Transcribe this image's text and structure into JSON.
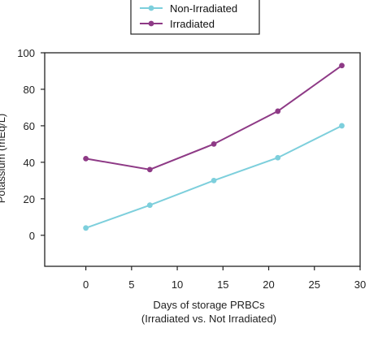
{
  "chart_data": {
    "type": "line",
    "xlabel": "Days of storage PRBCs",
    "xlabel_line2": "(Irradiated vs. Not Irradiated)",
    "ylabel": "Potassium (mEq/L)",
    "xlim": [
      -4.5,
      30
    ],
    "ylim": [
      -17,
      100
    ],
    "x_ticks": [
      0,
      5,
      10,
      15,
      20,
      25,
      30
    ],
    "y_ticks": [
      0,
      20,
      40,
      60,
      80,
      100
    ],
    "legend_position": "top-center",
    "grid": false,
    "series": [
      {
        "name": "Non-Irradiated",
        "color": "#7dcfdc",
        "x": [
          0,
          7,
          14,
          21,
          28
        ],
        "y": [
          4,
          16.5,
          30,
          42.5,
          60
        ]
      },
      {
        "name": "Irradiated",
        "color": "#8e3a86",
        "x": [
          0,
          7,
          14,
          21,
          28
        ],
        "y": [
          42,
          36,
          50,
          68,
          93
        ]
      }
    ]
  }
}
